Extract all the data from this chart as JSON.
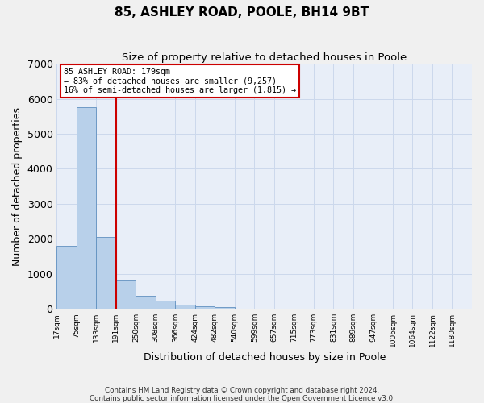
{
  "title": "85, ASHLEY ROAD, POOLE, BH14 9BT",
  "subtitle": "Size of property relative to detached houses in Poole",
  "xlabel": "Distribution of detached houses by size in Poole",
  "ylabel": "Number of detached properties",
  "bin_labels": [
    "17sqm",
    "75sqm",
    "133sqm",
    "191sqm",
    "250sqm",
    "308sqm",
    "366sqm",
    "424sqm",
    "482sqm",
    "540sqm",
    "599sqm",
    "657sqm",
    "715sqm",
    "773sqm",
    "831sqm",
    "889sqm",
    "947sqm",
    "1006sqm",
    "1064sqm",
    "1122sqm",
    "1180sqm"
  ],
  "bar_heights": [
    1800,
    5750,
    2050,
    800,
    380,
    230,
    115,
    80,
    55,
    5,
    5,
    0,
    0,
    0,
    0,
    0,
    0,
    0,
    0,
    0
  ],
  "bar_color": "#b8d0ea",
  "bar_edge_color": "#6090c0",
  "vline_index": 3,
  "vline_color": "#cc0000",
  "annotation_line1": "85 ASHLEY ROAD: 179sqm",
  "annotation_line2": "← 83% of detached houses are smaller (9,257)",
  "annotation_line3": "16% of semi-detached houses are larger (1,815) →",
  "annotation_box_color": "#ffffff",
  "annotation_edge_color": "#cc0000",
  "ylim": [
    0,
    7000
  ],
  "yticks": [
    0,
    1000,
    2000,
    3000,
    4000,
    5000,
    6000,
    7000
  ],
  "grid_color": "#ccd8ec",
  "plot_bg_color": "#e8eef8",
  "fig_bg_color": "#f0f0f0",
  "footer_line1": "Contains HM Land Registry data © Crown copyright and database right 2024.",
  "footer_line2": "Contains public sector information licensed under the Open Government Licence v3.0."
}
